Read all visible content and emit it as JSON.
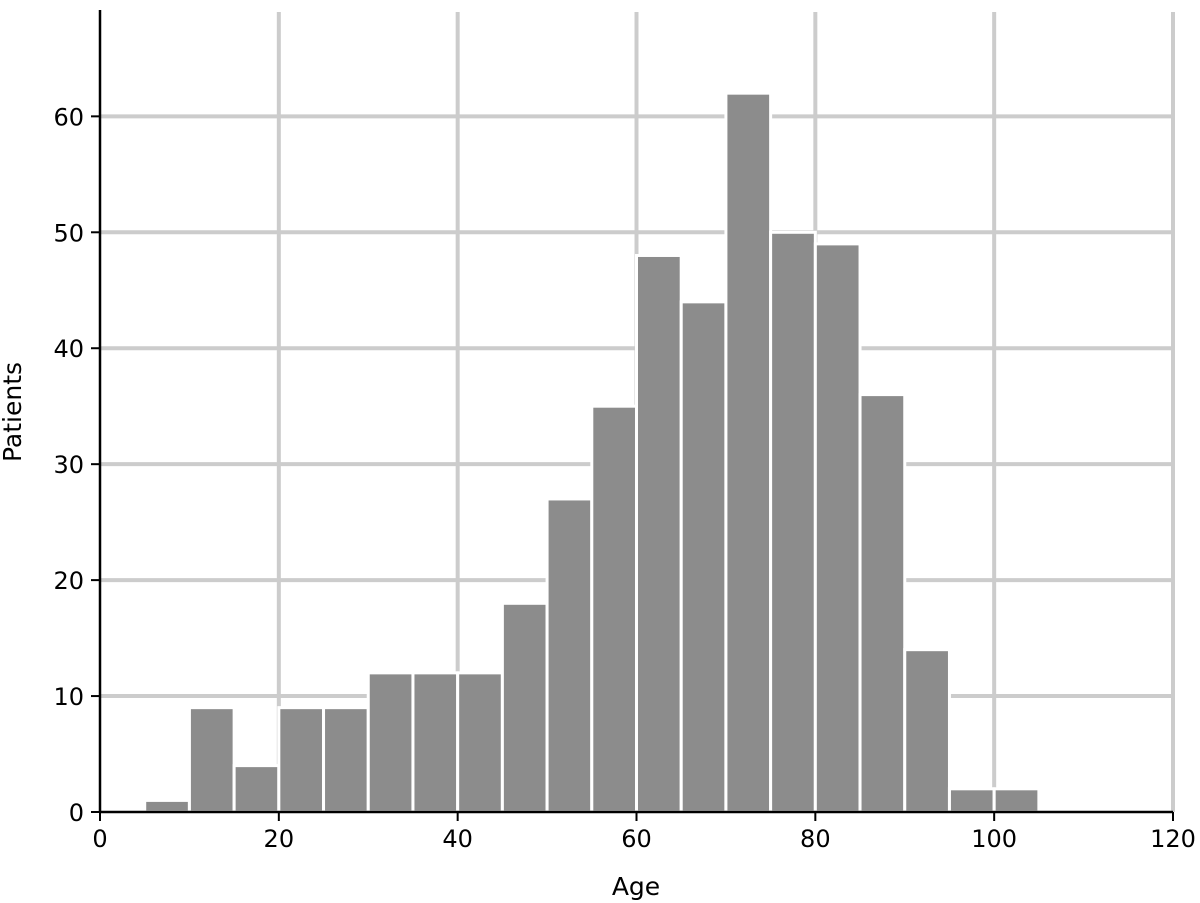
{
  "chart_data": {
    "type": "bar",
    "title": "",
    "xlabel": "Age",
    "ylabel": "Patients",
    "xlim": [
      0,
      120
    ],
    "ylim": [
      0,
      69
    ],
    "xticks": [
      0,
      20,
      40,
      60,
      80,
      100,
      120
    ],
    "yticks": [
      0,
      10,
      20,
      30,
      40,
      50,
      60
    ],
    "grid": true,
    "bin_width": 5,
    "bins": [
      {
        "x0": 5,
        "x1": 10,
        "value": 1
      },
      {
        "x0": 10,
        "x1": 15,
        "value": 9
      },
      {
        "x0": 15,
        "x1": 20,
        "value": 4
      },
      {
        "x0": 20,
        "x1": 25,
        "value": 9
      },
      {
        "x0": 25,
        "x1": 30,
        "value": 9
      },
      {
        "x0": 30,
        "x1": 35,
        "value": 12
      },
      {
        "x0": 35,
        "x1": 40,
        "value": 12
      },
      {
        "x0": 40,
        "x1": 45,
        "value": 12
      },
      {
        "x0": 45,
        "x1": 50,
        "value": 18
      },
      {
        "x0": 50,
        "x1": 55,
        "value": 27
      },
      {
        "x0": 55,
        "x1": 60,
        "value": 35
      },
      {
        "x0": 60,
        "x1": 65,
        "value": 48
      },
      {
        "x0": 65,
        "x1": 70,
        "value": 44
      },
      {
        "x0": 70,
        "x1": 75,
        "value": 62
      },
      {
        "x0": 75,
        "x1": 80,
        "value": 50
      },
      {
        "x0": 80,
        "x1": 85,
        "value": 49
      },
      {
        "x0": 85,
        "x1": 90,
        "value": 36
      },
      {
        "x0": 90,
        "x1": 95,
        "value": 14
      },
      {
        "x0": 95,
        "x1": 100,
        "value": 2
      },
      {
        "x0": 100,
        "x1": 105,
        "value": 2
      }
    ],
    "colors": {
      "bar": "#8c8c8c",
      "bar_edge": "#ffffff",
      "grid": "#cccccc",
      "axis": "#000000"
    }
  }
}
